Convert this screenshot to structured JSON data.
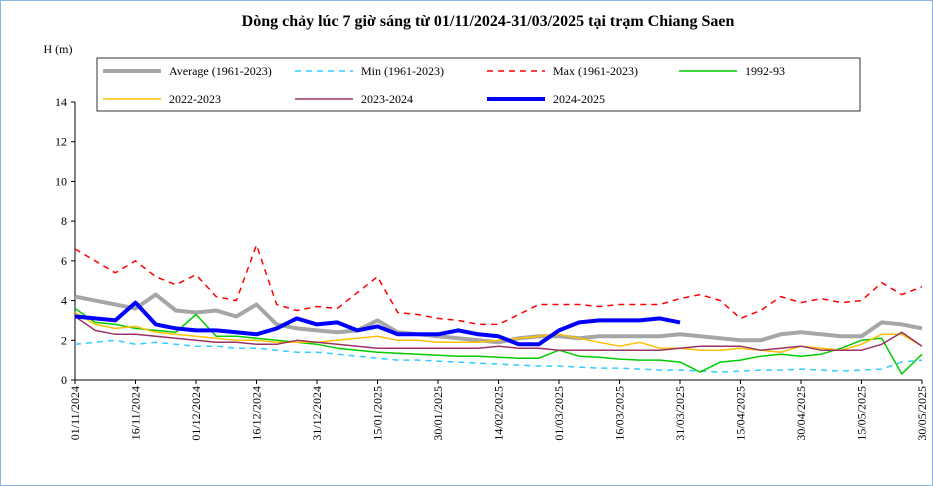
{
  "chart_data": {
    "type": "line",
    "title": "Dòng chảy lúc 7 giờ sáng từ 01/11/2024-31/03/2025 tại trạm Chiang Saen",
    "y_label": "H (m)",
    "x": [
      "01/11/2024",
      "06/11/2024",
      "11/11/2024",
      "16/11/2024",
      "21/11/2024",
      "26/11/2024",
      "01/12/2024",
      "06/12/2024",
      "11/12/2024",
      "16/12/2024",
      "21/12/2024",
      "26/12/2024",
      "31/12/2024",
      "05/01/2025",
      "10/01/2025",
      "15/01/2025",
      "20/01/2025",
      "25/01/2025",
      "30/01/2025",
      "04/02/2025",
      "09/02/2025",
      "14/02/2025",
      "19/02/2025",
      "24/02/2025",
      "01/03/2025",
      "06/03/2025",
      "11/03/2025",
      "16/03/2025",
      "21/03/2025",
      "26/03/2025",
      "31/03/2025",
      "05/04/2025",
      "10/04/2025",
      "15/04/2025",
      "20/04/2025",
      "25/04/2025",
      "30/04/2025",
      "05/05/2025",
      "10/05/2025",
      "15/05/2025",
      "20/05/2025",
      "25/05/2025",
      "30/05/2025"
    ],
    "xlim": [
      "01/11/2024",
      "30/05/2025"
    ],
    "xticks": [
      "01/11/2024",
      "16/11/2024",
      "01/12/2024",
      "16/12/2024",
      "31/12/2024",
      "15/01/2025",
      "30/01/2025",
      "14/02/2025",
      "01/03/2025",
      "16/03/2025",
      "31/03/2025",
      "15/04/2025",
      "30/04/2025",
      "15/05/2025",
      "30/05/2025"
    ],
    "ylim": [
      0,
      14
    ],
    "yticks": [
      0,
      2,
      4,
      6,
      8,
      10,
      12,
      14
    ],
    "series": [
      {
        "name": "Average (1961-2023)",
        "color": "#a6a6a6",
        "width": 4,
        "dashed": false,
        "values": [
          4.2,
          4.0,
          3.8,
          3.6,
          4.3,
          3.5,
          3.4,
          3.5,
          3.2,
          3.8,
          2.8,
          2.6,
          2.5,
          2.4,
          2.5,
          3.0,
          2.4,
          2.3,
          2.2,
          2.1,
          2.0,
          1.9,
          2.1,
          2.2,
          2.2,
          2.1,
          2.2,
          2.2,
          2.2,
          2.2,
          2.3,
          2.2,
          2.1,
          2.0,
          2.0,
          2.3,
          2.4,
          2.3,
          2.2,
          2.2,
          2.9,
          2.8,
          2.6
        ]
      },
      {
        "name": "Min (1961-2023)",
        "color": "#33ccff",
        "width": 1.5,
        "dashed": true,
        "values": [
          1.8,
          1.9,
          2.0,
          1.8,
          1.9,
          1.8,
          1.7,
          1.7,
          1.6,
          1.6,
          1.5,
          1.4,
          1.4,
          1.3,
          1.2,
          1.1,
          1.0,
          1.0,
          0.95,
          0.9,
          0.85,
          0.8,
          0.75,
          0.7,
          0.7,
          0.65,
          0.6,
          0.6,
          0.55,
          0.5,
          0.5,
          0.45,
          0.4,
          0.45,
          0.5,
          0.5,
          0.55,
          0.5,
          0.45,
          0.5,
          0.55,
          0.9,
          1.0
        ]
      },
      {
        "name": "Max (1961-2023)",
        "color": "#ff0000",
        "width": 1.5,
        "dashed": true,
        "values": [
          6.6,
          6.0,
          5.4,
          6.0,
          5.2,
          4.8,
          5.3,
          4.2,
          4.0,
          6.8,
          3.8,
          3.5,
          3.7,
          3.6,
          4.4,
          5.2,
          3.4,
          3.3,
          3.1,
          3.0,
          2.8,
          2.8,
          3.3,
          3.8,
          3.8,
          3.8,
          3.7,
          3.8,
          3.8,
          3.8,
          4.1,
          4.3,
          4.0,
          3.1,
          3.5,
          4.2,
          3.9,
          4.1,
          3.9,
          4.0,
          4.9,
          4.3,
          4.7
        ]
      },
      {
        "name": "1992-93",
        "color": "#00cc00",
        "width": 1.5,
        "dashed": false,
        "values": [
          3.6,
          2.9,
          2.8,
          2.6,
          2.5,
          2.4,
          3.3,
          2.2,
          2.2,
          2.1,
          2.0,
          1.9,
          1.8,
          1.6,
          1.5,
          1.4,
          1.35,
          1.3,
          1.25,
          1.2,
          1.2,
          1.15,
          1.1,
          1.1,
          1.5,
          1.2,
          1.15,
          1.05,
          1.0,
          1.0,
          0.9,
          0.4,
          0.9,
          1.0,
          1.2,
          1.3,
          1.2,
          1.3,
          1.6,
          2.0,
          2.1,
          0.3,
          1.3
        ]
      },
      {
        "name": "2022-2023",
        "color": "#ffc000",
        "width": 1.5,
        "dashed": false,
        "values": [
          3.4,
          2.8,
          2.6,
          2.7,
          2.4,
          2.3,
          2.2,
          2.1,
          2.0,
          2.0,
          1.9,
          1.9,
          1.9,
          2.0,
          2.1,
          2.2,
          2.0,
          2.0,
          1.9,
          1.9,
          1.9,
          2.0,
          2.1,
          2.2,
          2.3,
          2.1,
          1.9,
          1.7,
          1.9,
          1.6,
          1.6,
          1.5,
          1.5,
          1.6,
          1.5,
          1.4,
          1.7,
          1.6,
          1.5,
          1.8,
          2.3,
          2.3,
          1.7
        ]
      },
      {
        "name": "2023-2024",
        "color": "#993366",
        "width": 1.5,
        "dashed": false,
        "values": [
          3.2,
          2.5,
          2.3,
          2.3,
          2.2,
          2.1,
          2.0,
          1.9,
          1.9,
          1.8,
          1.8,
          2.0,
          1.9,
          1.8,
          1.7,
          1.6,
          1.6,
          1.6,
          1.6,
          1.6,
          1.6,
          1.7,
          1.6,
          1.6,
          1.5,
          1.5,
          1.5,
          1.5,
          1.5,
          1.5,
          1.6,
          1.7,
          1.7,
          1.7,
          1.5,
          1.6,
          1.7,
          1.5,
          1.5,
          1.5,
          1.8,
          2.4,
          1.7
        ]
      },
      {
        "name": "2024-2025",
        "color": "#0000ff",
        "width": 4,
        "dashed": false,
        "values": [
          3.2,
          3.1,
          3.0,
          3.9,
          2.8,
          2.6,
          2.5,
          2.5,
          2.4,
          2.3,
          2.6,
          3.1,
          2.8,
          2.9,
          2.5,
          2.7,
          2.3,
          2.3,
          2.3,
          2.5,
          2.3,
          2.2,
          1.8,
          1.8,
          2.5,
          2.9,
          3.0,
          3.0,
          3.0,
          3.1,
          2.9,
          null,
          null,
          null,
          null,
          null,
          null,
          null,
          null,
          null,
          null,
          null,
          null
        ]
      }
    ]
  }
}
